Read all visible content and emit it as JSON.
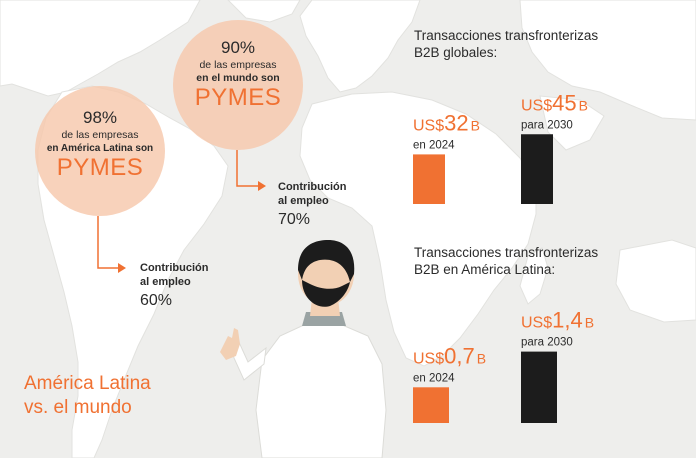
{
  "colors": {
    "orange": "#f07132",
    "circle": "#f6c8ac",
    "background": "#eeeeec",
    "map": "#ffffff",
    "bar_future": "#1c1c1c",
    "text": "#2b2b2b"
  },
  "latam_circle": {
    "percent": "98%",
    "line1": "de las empresas",
    "line2": "en América Latina son",
    "word": "PYMES"
  },
  "world_circle": {
    "percent": "90%",
    "line1": "de las empresas",
    "line2": "en el mundo son",
    "word": "PYMES"
  },
  "latam_employment": {
    "line1": "Contribución",
    "line2": "al empleo",
    "value": "60%"
  },
  "world_employment": {
    "line1": "Contribución",
    "line2": "al empleo",
    "value": "70%"
  },
  "footer_title": {
    "line1": "América Latina",
    "line2": "vs. el mundo"
  },
  "chart_data": [
    {
      "type": "bar",
      "title_line1": "Transacciones transfronterizas",
      "title_line2": "B2B globales:",
      "categories": [
        "en 2024",
        "para 2030"
      ],
      "values": [
        32,
        45
      ],
      "value_labels": [
        {
          "prefix": "US$",
          "number": "32",
          "suffix": "B"
        },
        {
          "prefix": "US$",
          "number": "45",
          "suffix": "B"
        }
      ],
      "unit": "B (miles de millones US$)",
      "bar_colors": [
        "#f07132",
        "#1c1c1c"
      ]
    },
    {
      "type": "bar",
      "title_line1": "Transacciones transfronterizas",
      "title_line2": "B2B en América Latina:",
      "categories": [
        "en 2024",
        "para 2030"
      ],
      "values": [
        0.7,
        1.4
      ],
      "value_labels": [
        {
          "prefix": "US$",
          "number": "0,7",
          "suffix": "B"
        },
        {
          "prefix": "US$",
          "number": "1,4",
          "suffix": "B"
        }
      ],
      "unit": "B (miles de millones US$)",
      "bar_colors": [
        "#f07132",
        "#1c1c1c"
      ]
    }
  ]
}
